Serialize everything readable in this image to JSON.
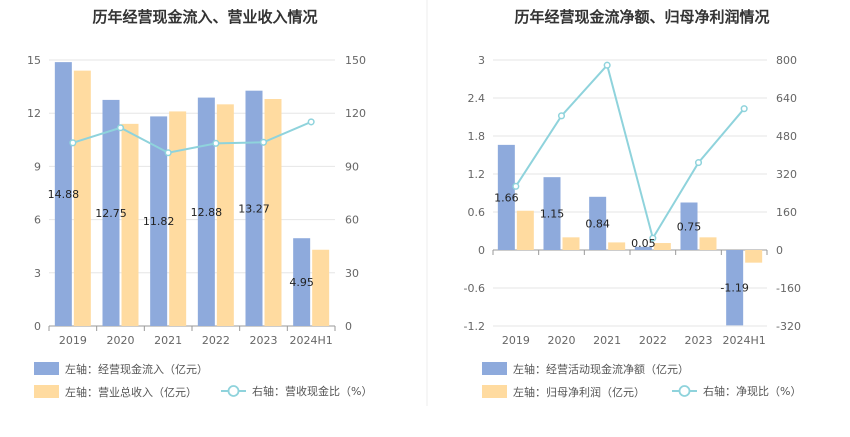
{
  "chart_data": [
    {
      "type": "bar",
      "title": "历年经营现金流入、营业收入情况",
      "categories": [
        "2019",
        "2020",
        "2021",
        "2022",
        "2023",
        "2024H1"
      ],
      "left_axis": {
        "ticks": [
          "0",
          "3",
          "6",
          "9",
          "12",
          "15"
        ],
        "ylim": [
          0,
          15
        ]
      },
      "right_axis": {
        "ticks": [
          "0",
          "30",
          "60",
          "90",
          "120",
          "150"
        ],
        "ylim": [
          0,
          150
        ]
      },
      "series": [
        {
          "name": "左轴：经营现金流入（亿元）",
          "kind": "bar",
          "axis": "left",
          "color": "#8eaadc",
          "values": [
            14.88,
            12.75,
            11.82,
            12.88,
            13.27,
            4.95
          ],
          "labels": [
            "14.88",
            "12.75",
            "11.82",
            "12.88",
            "13.27",
            "4.95"
          ]
        },
        {
          "name": "左轴：营业总收入（亿元）",
          "kind": "bar",
          "axis": "left",
          "color": "#ffdba0",
          "values": [
            14.4,
            11.4,
            12.1,
            12.5,
            12.8,
            4.3
          ]
        },
        {
          "name": "右轴：营收现金比（%）",
          "kind": "line",
          "axis": "right",
          "color": "#8fd3dc",
          "values": [
            103.3,
            111.8,
            97.7,
            103.0,
            103.6,
            115.1
          ]
        }
      ]
    },
    {
      "type": "bar",
      "title": "历年经营现金流净额、归母净利润情况",
      "categories": [
        "2019",
        "2020",
        "2021",
        "2022",
        "2023",
        "2024H1"
      ],
      "left_axis": {
        "ticks": [
          "-1.2",
          "-0.6",
          "0",
          "0.6",
          "1.2",
          "1.8",
          "2.4",
          "3"
        ],
        "ylim": [
          -1.2,
          3
        ]
      },
      "right_axis": {
        "ticks": [
          "-320",
          "-160",
          "0",
          "160",
          "320",
          "480",
          "640",
          "800"
        ],
        "ylim": [
          -320,
          800
        ]
      },
      "series": [
        {
          "name": "左轴：经营活动现金流净额（亿元）",
          "kind": "bar",
          "axis": "left",
          "color": "#8eaadc",
          "values": [
            1.66,
            1.15,
            0.84,
            0.05,
            0.75,
            -1.19
          ],
          "labels": [
            "1.66",
            "1.15",
            "0.84",
            "0.05",
            "0.75",
            "-1.19"
          ]
        },
        {
          "name": "左轴：归母净利润（亿元）",
          "kind": "bar",
          "axis": "left",
          "color": "#ffdba0",
          "values": [
            0.62,
            0.2,
            0.12,
            0.11,
            0.2,
            -0.2
          ]
        },
        {
          "name": "右轴：净现比（%）",
          "kind": "line",
          "axis": "right",
          "color": "#8fd3dc",
          "values": [
            268,
            565,
            778,
            50,
            368,
            595
          ]
        }
      ]
    }
  ]
}
